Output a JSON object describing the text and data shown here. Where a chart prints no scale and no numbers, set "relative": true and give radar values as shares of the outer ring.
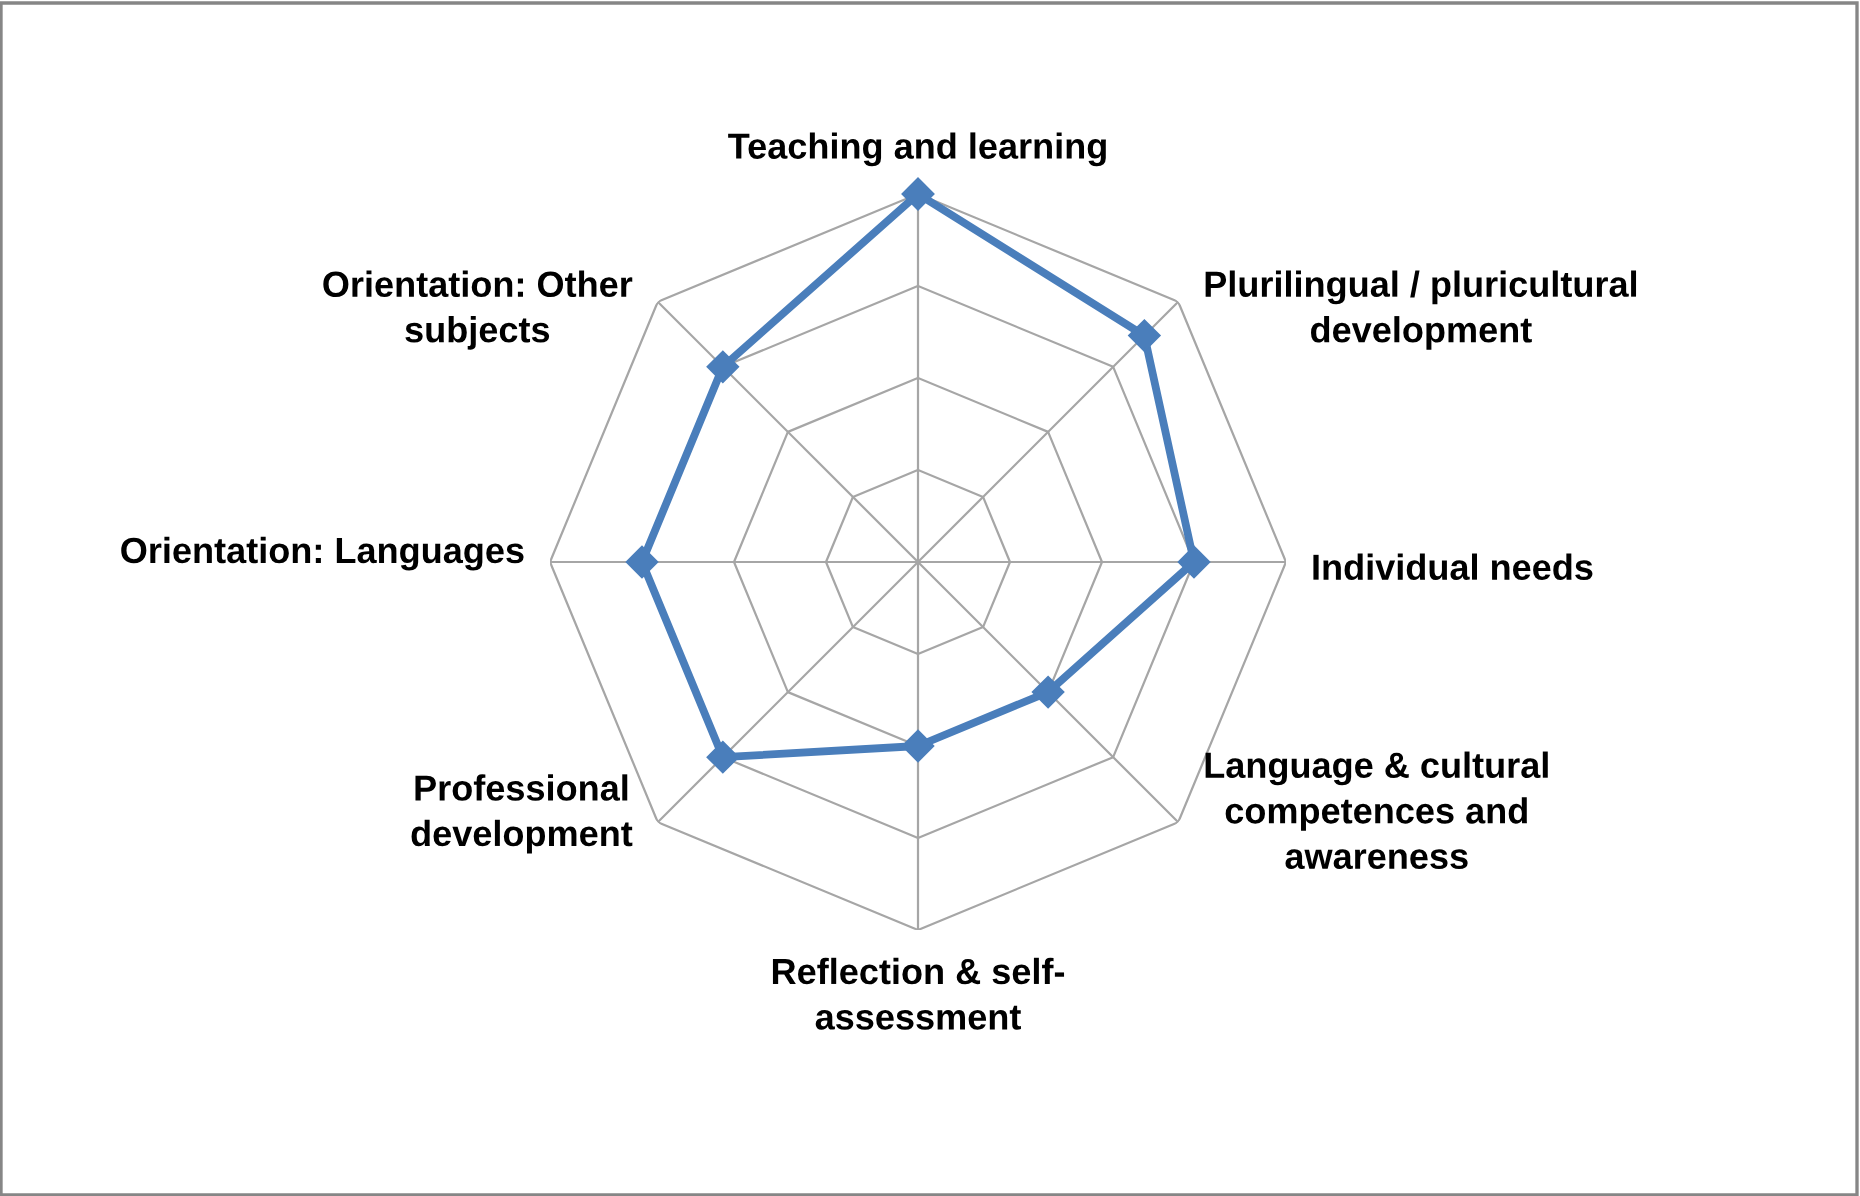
{
  "chart_data": {
    "type": "radar",
    "relative": true,
    "grid": true,
    "marker": "diamond",
    "line_style": "solid",
    "categories": [
      "Teaching and learning",
      "Plurilingual / pluricultural\ndevelopment",
      "Individual needs",
      "Language & cultural\ncompetences and\nawareness",
      "Reflection & self-\nassessment",
      "Professional\ndevelopment",
      "Orientation: Languages",
      "Orientation: Other\nsubjects"
    ],
    "series": [
      {
        "color": "#4a7ebb",
        "values": [
          1.0,
          0.87,
          0.75,
          0.5,
          0.5,
          0.75,
          0.75,
          0.75
        ]
      }
    ]
  }
}
